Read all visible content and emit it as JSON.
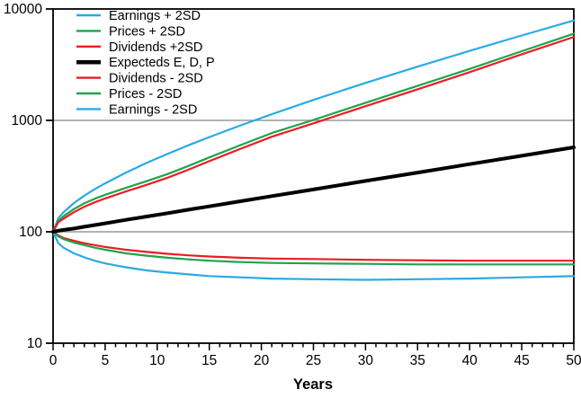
{
  "page": {
    "background_color": "#ffffff",
    "axis_color": "#000000",
    "grid_color": "#999999",
    "text_color": "#000000"
  },
  "chart_data": {
    "type": "line",
    "title": "",
    "xlabel": "Years",
    "ylabel": "",
    "x_axis": {
      "min": 0,
      "max": 50,
      "major_tick_step": 5,
      "minor_tick_step": 1,
      "tick_labels": [
        "0",
        "5",
        "10",
        "15",
        "20",
        "25",
        "30",
        "35",
        "40",
        "45",
        "50"
      ]
    },
    "y_axis": {
      "scale": "log",
      "min": 10,
      "max": 10000,
      "ticks": [
        10,
        100,
        1000,
        10000
      ],
      "tick_labels": [
        "10",
        "100",
        "1000",
        "10000"
      ],
      "gridlines": [
        100,
        1000
      ]
    },
    "legend": {
      "position": "top-left"
    },
    "x": [
      0,
      0.5,
      1,
      2,
      3,
      4,
      5,
      7,
      9,
      11,
      13,
      15,
      18,
      21,
      25,
      30,
      35,
      40,
      45,
      50
    ],
    "series": [
      {
        "name": "Earnings + 2SD",
        "color": "#29ABE2",
        "width": 2.2,
        "values": [
          100,
          132,
          150,
          181,
          211,
          241,
          272,
          340,
          416,
          501,
          598,
          708,
          902,
          1137,
          1526,
          2168,
          3038,
          4210,
          5781,
          7878
        ]
      },
      {
        "name": "Prices + 2SD",
        "color": "#1FA34D",
        "width": 2.2,
        "values": [
          100,
          125,
          138,
          160,
          180,
          198,
          215,
          248,
          285,
          330,
          390,
          465,
          600,
          770,
          1010,
          1440,
          2040,
          2900,
          4180,
          6000
        ]
      },
      {
        "name": "Dividends +2SD",
        "color": "#EC1C24",
        "width": 2.2,
        "values": [
          100,
          122,
          131,
          150,
          168,
          184,
          199,
          230,
          264,
          306,
          361,
          430,
          556,
          713,
          940,
          1340,
          1900,
          2710,
          3920,
          5600
        ]
      },
      {
        "name": "Expecteds E, D, P",
        "color": "#000000",
        "width": 4,
        "values": [
          100,
          102,
          104,
          107,
          111,
          115,
          119,
          128,
          137,
          147,
          158,
          169,
          188,
          209,
          240,
          286,
          340,
          405,
          481,
          573
        ]
      },
      {
        "name": "Dividends - 2SD",
        "color": "#EC1C24",
        "width": 2.2,
        "values": [
          100,
          93,
          88,
          83,
          79,
          76,
          73,
          69,
          66,
          63.5,
          61.5,
          60,
          58.5,
          57.5,
          57,
          56,
          55.5,
          55,
          55,
          55
        ]
      },
      {
        "name": "Prices - 2SD",
        "color": "#1FA34D",
        "width": 2.2,
        "values": [
          100,
          91,
          86,
          80,
          76,
          72,
          69,
          64,
          61,
          58.5,
          56.5,
          55,
          53.5,
          52.5,
          52,
          51.5,
          51,
          51,
          51,
          51
        ]
      },
      {
        "name": "Earnings - 2SD",
        "color": "#29ABE2",
        "width": 2.2,
        "values": [
          100,
          79,
          72,
          64,
          59,
          55,
          52,
          48,
          45,
          43,
          41.5,
          40,
          39,
          38,
          37.5,
          37,
          37.5,
          38,
          39,
          40
        ]
      }
    ]
  }
}
